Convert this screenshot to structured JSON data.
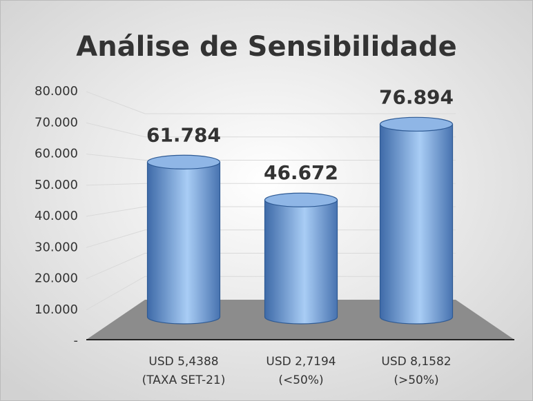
{
  "chart_data": {
    "type": "bar3d",
    "title": "Análise de Sensibilidade",
    "categories": [
      [
        "USD 5,4388",
        "(TAXA SET-21)"
      ],
      [
        "USD 2,7194",
        "(<50%)"
      ],
      [
        "USD 8,1582",
        "(>50%)"
      ]
    ],
    "values": [
      61784,
      46672,
      76894
    ],
    "value_labels": [
      "61.784",
      "46.672",
      "76.894"
    ],
    "color": "#5b8ed0",
    "ylim": [
      0,
      80000
    ],
    "yticks": [
      {
        "value": 0,
        "label": "-"
      },
      {
        "value": 10000,
        "label": "10.000"
      },
      {
        "value": 20000,
        "label": "20.000"
      },
      {
        "value": 30000,
        "label": "30.000"
      },
      {
        "value": 40000,
        "label": "40.000"
      },
      {
        "value": 50000,
        "label": "50.000"
      },
      {
        "value": 60000,
        "label": "60.000"
      },
      {
        "value": 70000,
        "label": "70.000"
      },
      {
        "value": 80000,
        "label": "80.000"
      }
    ],
    "grid": true
  }
}
